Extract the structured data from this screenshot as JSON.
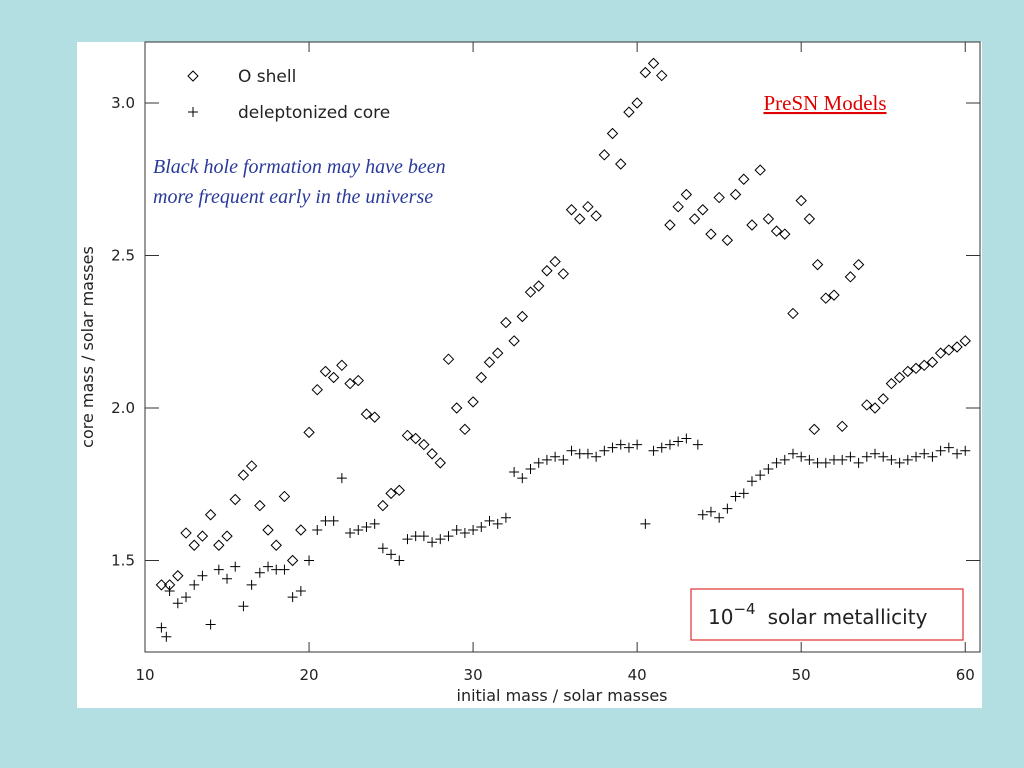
{
  "chart_data": {
    "type": "scatter",
    "title": "PreSN Models",
    "annotation": "Black hole formation may have been more frequent early in the universe",
    "metallicity_box": {
      "base": "10",
      "exponent": "−4",
      "text": "solar metallicity"
    },
    "x_label": "initial mass / solar masses",
    "y_label": "core mass / solar masses",
    "xlim": [
      10,
      60.9
    ],
    "ylim": [
      1.2,
      3.2
    ],
    "xticks": [
      10,
      20,
      30,
      40,
      50,
      60
    ],
    "yticks": [
      1.5,
      {
        "value": 2.0,
        "label": "2.0"
      },
      2.5,
      {
        "value": 3.0,
        "label": "3.0"
      }
    ],
    "legend": "top-left",
    "series": [
      {
        "name": "O shell",
        "marker": "diamond",
        "color": "#000000",
        "x": [
          11,
          11.5,
          12,
          12.5,
          13,
          13.5,
          14,
          14.5,
          15,
          15.5,
          16,
          16.5,
          17,
          17.5,
          18,
          18.5,
          19,
          19.5,
          20,
          20.5,
          21,
          21.5,
          22,
          22.5,
          23,
          23.5,
          24,
          24.5,
          25,
          25.5,
          26,
          26.5,
          27,
          27.5,
          28,
          28.5,
          29,
          29.5,
          30,
          30.5,
          31,
          31.5,
          32,
          32.5,
          33,
          33.5,
          34,
          34.5,
          35,
          35.5,
          36,
          36.5,
          37,
          37.5,
          38,
          38.5,
          39,
          39.5,
          40,
          40.5,
          41,
          41.5,
          42,
          42.5,
          43,
          43.5,
          44,
          44.5,
          45,
          45.5,
          46,
          46.5,
          47,
          47.5,
          48,
          48.5,
          49,
          49.5,
          50,
          50.5,
          50.8,
          51,
          51.5,
          52,
          52.5,
          53,
          53.5,
          54,
          54.5,
          55,
          55.5,
          56,
          56.5,
          57,
          57.5,
          58,
          58.5,
          59,
          59.5,
          60
        ],
        "values": [
          1.42,
          1.42,
          1.45,
          1.59,
          1.55,
          1.58,
          1.65,
          1.55,
          1.58,
          1.7,
          1.78,
          1.81,
          1.68,
          1.6,
          1.55,
          1.71,
          1.5,
          1.6,
          1.92,
          2.06,
          2.12,
          2.1,
          2.14,
          2.08,
          2.09,
          1.98,
          1.97,
          1.68,
          1.72,
          1.73,
          1.91,
          1.9,
          1.88,
          1.85,
          1.82,
          2.16,
          2.0,
          1.93,
          2.02,
          2.1,
          2.15,
          2.18,
          2.28,
          2.22,
          2.3,
          2.38,
          2.4,
          2.45,
          2.48,
          2.44,
          2.65,
          2.62,
          2.66,
          2.63,
          2.83,
          2.9,
          2.8,
          2.97,
          3.0,
          3.1,
          3.13,
          3.09,
          2.6,
          2.66,
          2.7,
          2.62,
          2.65,
          2.57,
          2.69,
          2.55,
          2.7,
          2.75,
          2.6,
          2.78,
          2.62,
          2.58,
          2.57,
          2.31,
          2.68,
          2.62,
          1.93,
          2.47,
          2.36,
          2.37,
          1.94,
          2.43,
          2.47,
          2.01,
          2.0,
          2.03,
          2.08,
          2.1,
          2.12,
          2.13,
          2.14,
          2.15,
          2.18,
          2.19,
          2.2,
          2.22
        ]
      },
      {
        "name": "deleptonized core",
        "marker": "plus",
        "color": "#000000",
        "x": [
          11,
          11.3,
          11.5,
          12,
          12.5,
          13,
          13.5,
          14,
          14.5,
          15,
          15.5,
          16,
          16.5,
          17,
          17.5,
          18,
          18.5,
          19,
          19.5,
          20,
          20.5,
          21,
          21.5,
          22,
          22.5,
          23,
          23.5,
          24,
          24.5,
          25,
          25.5,
          26,
          26.5,
          27,
          27.5,
          28,
          28.5,
          29,
          29.5,
          30,
          30.5,
          31,
          31.5,
          32,
          32.5,
          33,
          33.5,
          34,
          34.5,
          35,
          35.5,
          36,
          36.5,
          37,
          37.5,
          38,
          38.5,
          39,
          39.5,
          40,
          40.5,
          41,
          41.5,
          42,
          42.5,
          43,
          43.7,
          44,
          44.5,
          45,
          45.5,
          46,
          46.5,
          47,
          47.5,
          48,
          48.5,
          49,
          49.5,
          50,
          50.5,
          51,
          51.5,
          52,
          52.5,
          53,
          53.5,
          54,
          54.5,
          55,
          55.5,
          56,
          56.5,
          57,
          57.5,
          58,
          58.5,
          59,
          59.5,
          60
        ],
        "values": [
          1.28,
          1.25,
          1.4,
          1.36,
          1.38,
          1.42,
          1.45,
          1.29,
          1.47,
          1.44,
          1.48,
          1.35,
          1.42,
          1.46,
          1.48,
          1.47,
          1.47,
          1.38,
          1.4,
          1.5,
          1.6,
          1.63,
          1.63,
          1.77,
          1.59,
          1.6,
          1.61,
          1.62,
          1.54,
          1.52,
          1.5,
          1.57,
          1.58,
          1.58,
          1.56,
          1.57,
          1.58,
          1.6,
          1.59,
          1.6,
          1.61,
          1.63,
          1.62,
          1.64,
          1.79,
          1.77,
          1.8,
          1.82,
          1.83,
          1.84,
          1.83,
          1.86,
          1.85,
          1.85,
          1.84,
          1.86,
          1.87,
          1.88,
          1.87,
          1.88,
          1.62,
          1.86,
          1.87,
          1.88,
          1.89,
          1.9,
          1.88,
          1.65,
          1.66,
          1.64,
          1.67,
          1.71,
          1.72,
          1.76,
          1.78,
          1.8,
          1.82,
          1.83,
          1.85,
          1.84,
          1.83,
          1.82,
          1.82,
          1.83,
          1.83,
          1.84,
          1.82,
          1.84,
          1.85,
          1.84,
          1.83,
          1.82,
          1.83,
          1.84,
          1.85,
          1.84,
          1.86,
          1.87,
          1.85,
          1.86
        ]
      }
    ]
  }
}
